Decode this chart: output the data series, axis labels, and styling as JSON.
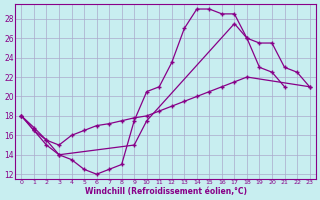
{
  "xlabel": "Windchill (Refroidissement éolien,°C)",
  "bg_color": "#c8eef0",
  "grid_color": "#aaaacc",
  "line_color": "#880088",
  "xlim": [
    -0.5,
    23.5
  ],
  "ylim": [
    11.5,
    29.5
  ],
  "yticks": [
    12,
    14,
    16,
    18,
    20,
    22,
    24,
    26,
    28
  ],
  "xticks": [
    0,
    1,
    2,
    3,
    4,
    5,
    6,
    7,
    8,
    9,
    10,
    11,
    12,
    13,
    14,
    15,
    16,
    17,
    18,
    19,
    20,
    21,
    22,
    23
  ],
  "line1_x": [
    0,
    1,
    2,
    3,
    4,
    5,
    6,
    7,
    8,
    9,
    10,
    11,
    12,
    13,
    14,
    15,
    16,
    17,
    18,
    19,
    20,
    21
  ],
  "line1_y": [
    18,
    16.5,
    15,
    14,
    13.5,
    12.5,
    12,
    12.5,
    13,
    17.5,
    20.5,
    21,
    23.5,
    27,
    29,
    29,
    28.5,
    28.5,
    26,
    23,
    22.5,
    21
  ],
  "line2_x": [
    0,
    1,
    2,
    3,
    4,
    5,
    6,
    7,
    8,
    9,
    10,
    11,
    12,
    13,
    14,
    15,
    16,
    17,
    18,
    23
  ],
  "line2_y": [
    18,
    16.8,
    15.5,
    15,
    16,
    16.5,
    17,
    17.2,
    17.5,
    17.8,
    18,
    18.5,
    19,
    19.5,
    20,
    20.5,
    21,
    21.5,
    22,
    21
  ],
  "line3_x": [
    0,
    1,
    2,
    3,
    9,
    10,
    17,
    18,
    19,
    20,
    21,
    22,
    23
  ],
  "line3_y": [
    18,
    16.5,
    15.5,
    14,
    15,
    17.5,
    27.5,
    26,
    25.5,
    25.5,
    23,
    22.5,
    21
  ]
}
